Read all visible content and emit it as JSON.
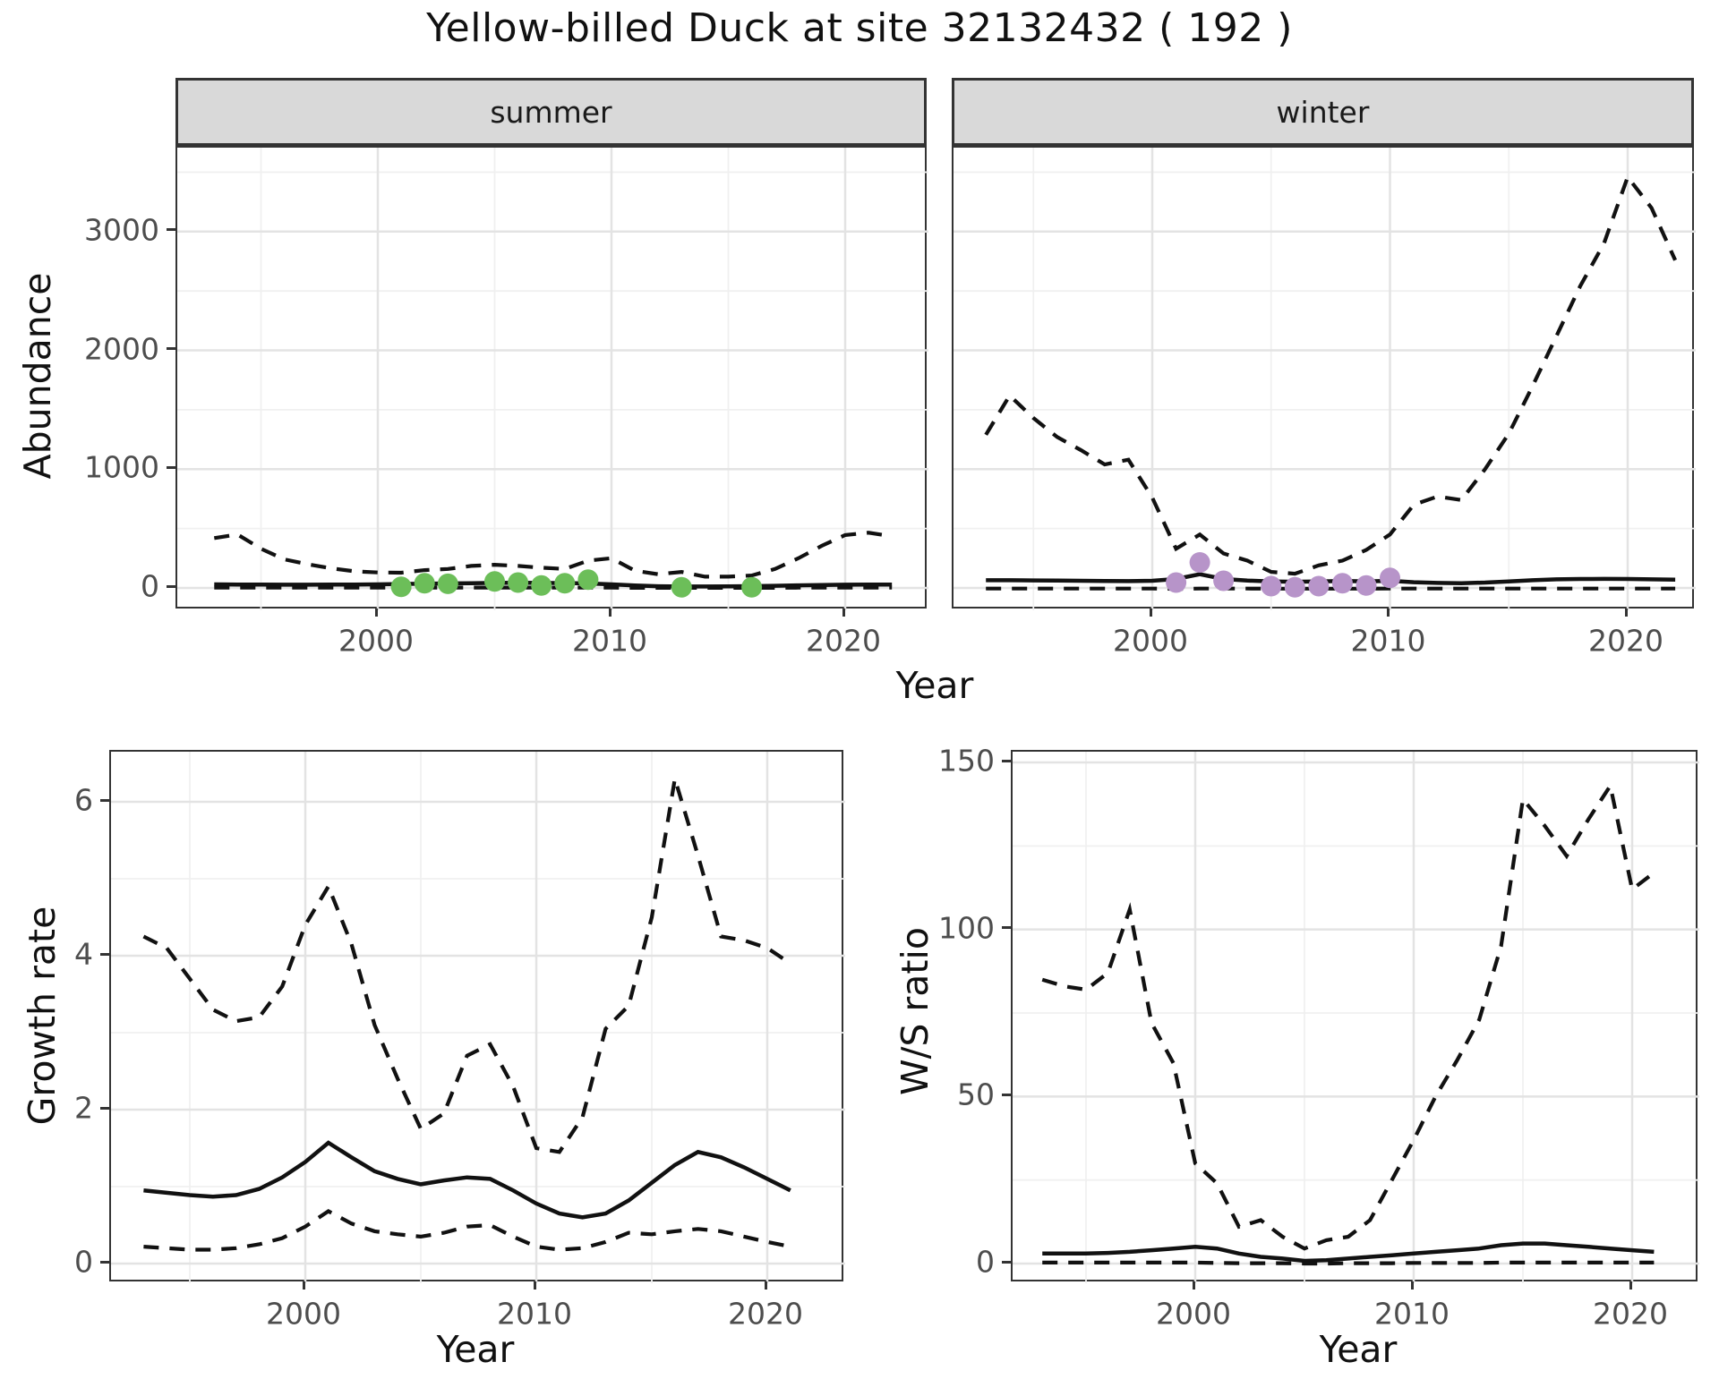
{
  "title": "Yellow-billed Duck at site 32132432 ( 192 )",
  "labels": {
    "year": "Year",
    "abundance": "Abundance",
    "growth": "Growth rate",
    "ws": "W/S ratio"
  },
  "colors": {
    "summer_points": "#6cbe59",
    "winter_points": "#b794c9",
    "line": "#111111",
    "grid_major": "#e3e3e3",
    "grid_minor": "#f0f0f0",
    "strip_bg": "#d9d9d9",
    "panel_border": "#333333",
    "tick_text": "#4d4d4d"
  },
  "chart_data": [
    {
      "id": "summer",
      "type": "line",
      "facet": "summer",
      "xlabel": "Year",
      "ylabel": "Abundance",
      "xlim": [
        1991.4,
        2023.6
      ],
      "ylim": [
        -188,
        3707
      ],
      "xticks": [
        2000,
        2010,
        2020
      ],
      "xminor": [
        1995,
        2005,
        2015
      ],
      "yticks": [
        0,
        1000,
        2000,
        3000
      ],
      "yminor": [
        500,
        1500,
        2500,
        3500
      ],
      "show_yticklabels": true,
      "years": [
        1993,
        1994,
        1995,
        1996,
        1997,
        1998,
        1999,
        2000,
        2001,
        2002,
        2003,
        2004,
        2005,
        2006,
        2007,
        2008,
        2009,
        2010,
        2011,
        2012,
        2013,
        2014,
        2015,
        2016,
        2017,
        2018,
        2019,
        2020,
        2021,
        2022
      ],
      "series": [
        {
          "name": "upper_ci",
          "style": "dashed",
          "values": [
            420,
            450,
            330,
            240,
            200,
            165,
            140,
            130,
            128,
            150,
            160,
            185,
            195,
            185,
            170,
            160,
            230,
            250,
            145,
            115,
            135,
            95,
            95,
            105,
            160,
            250,
            355,
            445,
            465,
            435
          ]
        },
        {
          "name": "mean",
          "style": "solid",
          "values": [
            30,
            29,
            28,
            27,
            27,
            28,
            29,
            30,
            33,
            36,
            38,
            40,
            42,
            43,
            42,
            41,
            38,
            30,
            20,
            14,
            12,
            12,
            13,
            15,
            18,
            22,
            25,
            27,
            28,
            28
          ]
        },
        {
          "name": "lower_ci",
          "style": "dashed",
          "values": [
            3,
            3,
            2,
            2,
            2,
            2,
            2,
            2,
            2,
            3,
            3,
            3,
            3,
            3,
            3,
            3,
            3,
            2,
            1,
            1,
            1,
            1,
            1,
            1,
            1,
            2,
            2,
            2,
            3,
            3
          ]
        }
      ],
      "observed": {
        "name": "summer_counts",
        "color": "#6cbe59",
        "years": [
          2001,
          2002,
          2003,
          2005,
          2006,
          2007,
          2008,
          2009,
          2013,
          2016
        ],
        "values": [
          10,
          40,
          35,
          55,
          45,
          20,
          40,
          70,
          5,
          5
        ]
      }
    },
    {
      "id": "winter",
      "type": "line",
      "facet": "winter",
      "xlabel": "Year",
      "ylabel": "Abundance",
      "xlim": [
        1991.6,
        2022.9
      ],
      "ylim": [
        -188,
        3707
      ],
      "xticks": [
        2000,
        2010,
        2020
      ],
      "xminor": [
        1995,
        2005,
        2015
      ],
      "yticks": [
        0,
        1000,
        2000,
        3000
      ],
      "yminor": [
        500,
        1500,
        2500,
        3500
      ],
      "show_yticklabels": false,
      "years": [
        1993,
        1994,
        1995,
        1996,
        1997,
        1998,
        1999,
        2000,
        2001,
        2002,
        2003,
        2004,
        2005,
        2006,
        2007,
        2008,
        2009,
        2010,
        2011,
        2012,
        2013,
        2014,
        2015,
        2016,
        2017,
        2018,
        2019,
        2020,
        2021,
        2022
      ],
      "series": [
        {
          "name": "upper_ci",
          "style": "dashed",
          "values": [
            1290,
            1620,
            1430,
            1270,
            1160,
            1040,
            1080,
            760,
            330,
            450,
            290,
            230,
            135,
            120,
            190,
            230,
            320,
            450,
            700,
            770,
            740,
            1000,
            1300,
            1700,
            2120,
            2540,
            2900,
            3460,
            3200,
            2760
          ]
        },
        {
          "name": "mean",
          "style": "solid",
          "values": [
            65,
            65,
            63,
            62,
            60,
            58,
            57,
            60,
            75,
            115,
            75,
            62,
            55,
            52,
            55,
            58,
            55,
            60,
            48,
            42,
            40,
            45,
            55,
            65,
            72,
            75,
            76,
            75,
            72,
            70
          ]
        },
        {
          "name": "lower_ci",
          "style": "dashed",
          "values": [
            -5,
            -5,
            -5,
            -5,
            -5,
            -5,
            -5,
            -5,
            -8,
            -5,
            -5,
            -5,
            -6,
            -6,
            -6,
            -6,
            -6,
            -5,
            -5,
            -5,
            -5,
            -5,
            -5,
            -5,
            -5,
            -5,
            -5,
            -5,
            -5,
            -5
          ]
        }
      ],
      "observed": {
        "name": "winter_counts",
        "color": "#b794c9",
        "years": [
          2001,
          2002,
          2003,
          2005,
          2006,
          2007,
          2008,
          2009,
          2010
        ],
        "values": [
          45,
          215,
          60,
          15,
          5,
          15,
          40,
          20,
          85
        ]
      }
    },
    {
      "id": "growth",
      "type": "line",
      "facet": null,
      "xlabel": "Year",
      "ylabel": "Growth rate",
      "xlim": [
        1991.6,
        2023.4
      ],
      "ylim": [
        -0.26,
        6.65
      ],
      "xticks": [
        2000,
        2010,
        2020
      ],
      "xminor": [
        1995,
        2005,
        2015
      ],
      "yticks": [
        0,
        2,
        4,
        6
      ],
      "yminor": [
        1,
        3,
        5
      ],
      "show_yticklabels": true,
      "years": [
        1993,
        1994,
        1995,
        1996,
        1997,
        1998,
        1999,
        2000,
        2001,
        2002,
        2003,
        2004,
        2005,
        2006,
        2007,
        2008,
        2009,
        2010,
        2011,
        2012,
        2013,
        2014,
        2015,
        2016,
        2017,
        2018,
        2019,
        2020,
        2021
      ],
      "series": [
        {
          "name": "upper_ci",
          "style": "dashed",
          "values": [
            4.25,
            4.1,
            3.7,
            3.3,
            3.15,
            3.2,
            3.6,
            4.4,
            4.9,
            4.15,
            3.1,
            2.4,
            1.75,
            1.95,
            2.7,
            2.85,
            2.3,
            1.5,
            1.45,
            1.9,
            3.05,
            3.35,
            4.5,
            6.3,
            5.3,
            4.25,
            4.2,
            4.1,
            3.9
          ]
        },
        {
          "name": "mean",
          "style": "solid",
          "values": [
            0.95,
            0.92,
            0.89,
            0.87,
            0.89,
            0.97,
            1.12,
            1.32,
            1.57,
            1.38,
            1.2,
            1.1,
            1.03,
            1.08,
            1.12,
            1.1,
            0.95,
            0.78,
            0.65,
            0.6,
            0.65,
            0.82,
            1.05,
            1.28,
            1.45,
            1.38,
            1.25,
            1.1,
            0.95
          ]
        },
        {
          "name": "lower_ci",
          "style": "dashed",
          "values": [
            0.22,
            0.2,
            0.18,
            0.18,
            0.2,
            0.25,
            0.33,
            0.48,
            0.68,
            0.52,
            0.42,
            0.38,
            0.35,
            0.4,
            0.48,
            0.5,
            0.35,
            0.22,
            0.18,
            0.2,
            0.28,
            0.4,
            0.38,
            0.42,
            0.45,
            0.42,
            0.35,
            0.28,
            0.22
          ]
        }
      ],
      "observed": null
    },
    {
      "id": "ws",
      "type": "line",
      "facet": null,
      "xlabel": "Year",
      "ylabel": "W/S ratio",
      "xlim": [
        1991.6,
        2023.1
      ],
      "ylim": [
        -5.9,
        153.2
      ],
      "xticks": [
        2000,
        2010,
        2020
      ],
      "xminor": [
        1995,
        2005,
        2015
      ],
      "yticks": [
        0,
        50,
        100,
        150
      ],
      "yminor": [
        25,
        75,
        125
      ],
      "show_yticklabels": true,
      "years": [
        1993,
        1994,
        1995,
        1996,
        1997,
        1998,
        1999,
        2000,
        2001,
        2002,
        2003,
        2004,
        2005,
        2006,
        2007,
        2008,
        2009,
        2010,
        2011,
        2012,
        2013,
        2014,
        2015,
        2016,
        2017,
        2018,
        2019,
        2020,
        2021
      ],
      "series": [
        {
          "name": "upper_ci",
          "style": "dashed",
          "values": [
            85,
            83,
            82,
            87,
            106,
            72,
            60,
            30,
            24,
            11,
            13,
            8,
            4.5,
            7,
            8,
            13,
            25,
            37,
            50,
            61,
            73,
            95,
            139,
            131,
            122,
            133,
            143,
            112,
            117
          ]
        },
        {
          "name": "mean",
          "style": "solid",
          "values": [
            3,
            3,
            3,
            3.2,
            3.5,
            4,
            4.5,
            5,
            4.5,
            3,
            2,
            1.5,
            0.8,
            1,
            1.5,
            2,
            2.5,
            3,
            3.5,
            4,
            4.5,
            5.5,
            6,
            6,
            5.5,
            5,
            4.5,
            4,
            3.5
          ]
        },
        {
          "name": "lower_ci",
          "style": "dashed",
          "values": [
            0.3,
            0.3,
            0.3,
            0.3,
            0.3,
            0.3,
            0.3,
            0.3,
            0.2,
            0.1,
            0.1,
            0.1,
            0,
            0,
            0.1,
            0.1,
            0.1,
            0.2,
            0.2,
            0.2,
            0.2,
            0.3,
            0.3,
            0.3,
            0.3,
            0.3,
            0.3,
            0.3,
            0.3
          ]
        }
      ],
      "observed": null
    }
  ]
}
